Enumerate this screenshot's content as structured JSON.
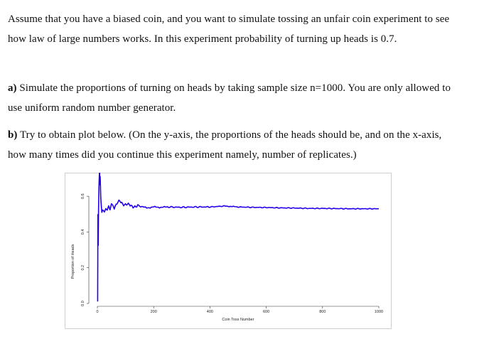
{
  "intro": {
    "text": "Assume that you have a biased coin, and you want to simulate tossing an unfair coin experiment to see how law of large numbers works. In this experiment probability of turning up heads is 0.7."
  },
  "part_a": {
    "label": "a)",
    "text": " Simulate the proportions of turning on heads by taking sample size n=1000. You are only allowed to use uniform random number generator."
  },
  "part_b": {
    "label": "b)",
    "text": " Try to obtain plot below. (On the y-axis, the proportions of the heads should be, and on the x-axis, how many times did you continue this experiment namely, number of replicates.)"
  },
  "chart_data": {
    "type": "line",
    "title": "",
    "xlabel": "Coin Toss Number",
    "ylabel": "Proportion of Heads",
    "xlim": [
      0,
      1000
    ],
    "ylim": [
      0,
      0.7
    ],
    "x_ticks": [
      "0",
      "200",
      "400",
      "600",
      "800",
      "1000"
    ],
    "y_ticks": [
      "0.0",
      "0.2",
      "0.4",
      "0.6"
    ],
    "grid": false,
    "legend": "none",
    "color": "#2200ee",
    "series": [
      {
        "x": [
          1,
          2,
          3,
          4,
          5,
          6,
          7,
          8,
          9,
          10,
          12,
          14,
          16,
          18,
          20,
          25,
          30,
          35,
          40,
          45,
          50,
          55,
          60,
          70,
          80,
          90,
          100,
          110,
          120,
          130,
          140,
          150,
          175,
          200,
          225,
          250,
          300,
          350,
          400,
          450,
          475,
          500,
          550,
          600,
          650,
          700,
          750,
          800,
          850,
          900,
          950,
          1000
        ],
        "y": [
          0.0,
          0.5,
          0.33,
          0.5,
          0.6,
          0.67,
          0.71,
          0.75,
          0.67,
          0.7,
          0.6,
          0.55,
          0.5,
          0.53,
          0.52,
          0.5,
          0.53,
          0.52,
          0.54,
          0.53,
          0.56,
          0.55,
          0.54,
          0.56,
          0.57,
          0.56,
          0.555,
          0.55,
          0.548,
          0.545,
          0.54,
          0.545,
          0.535,
          0.54,
          0.538,
          0.54,
          0.538,
          0.54,
          0.54,
          0.545,
          0.543,
          0.54,
          0.538,
          0.537,
          0.535,
          0.534,
          0.532,
          0.532,
          0.531,
          0.53,
          0.53,
          0.53
        ]
      }
    ]
  }
}
